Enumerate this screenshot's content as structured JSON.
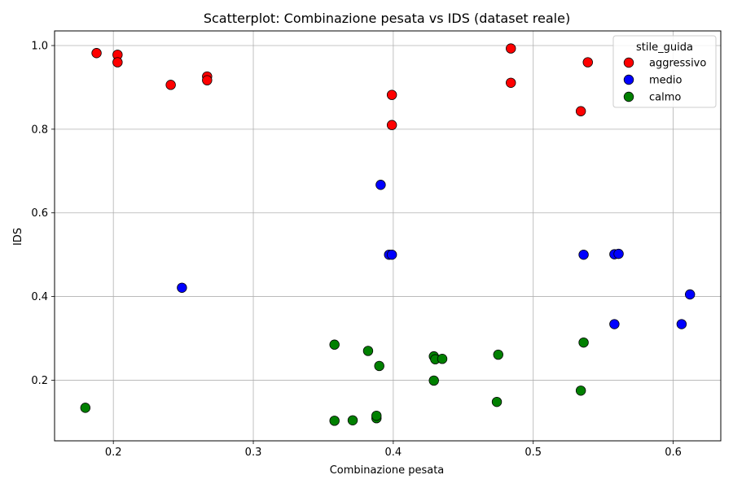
{
  "chart_data": {
    "type": "scatter",
    "title": "Scatterplot: Combinazione pesata vs IDS (dataset reale)",
    "xlabel": "Combinazione pesata",
    "ylabel": "IDS",
    "xlim": [
      0.158,
      0.634
    ],
    "ylim": [
      0.055,
      1.035
    ],
    "xticks": [
      0.2,
      0.3,
      0.4,
      0.5,
      0.6
    ],
    "xtick_labels": [
      "0.2",
      "0.3",
      "0.4",
      "0.5",
      "0.6"
    ],
    "yticks": [
      0.2,
      0.4,
      0.6,
      0.8,
      1.0
    ],
    "ytick_labels": [
      "0.2",
      "0.4",
      "0.6",
      "0.8",
      "1.0"
    ],
    "grid": true,
    "legend": {
      "title": "stile_guida",
      "placement": "top-right"
    },
    "series": [
      {
        "name": "aggressivo",
        "color": "#ff0000",
        "points": [
          [
            0.188,
            0.982
          ],
          [
            0.203,
            0.978
          ],
          [
            0.203,
            0.96
          ],
          [
            0.241,
            0.906
          ],
          [
            0.267,
            0.926
          ],
          [
            0.267,
            0.917
          ],
          [
            0.399,
            0.882
          ],
          [
            0.399,
            0.81
          ],
          [
            0.484,
            0.993
          ],
          [
            0.484,
            0.911
          ],
          [
            0.534,
            0.843
          ],
          [
            0.539,
            0.96
          ]
        ]
      },
      {
        "name": "medio",
        "color": "#0000ff",
        "points": [
          [
            0.249,
            0.421
          ],
          [
            0.391,
            0.667
          ],
          [
            0.397,
            0.5
          ],
          [
            0.399,
            0.5
          ],
          [
            0.536,
            0.5
          ],
          [
            0.558,
            0.501
          ],
          [
            0.561,
            0.502
          ],
          [
            0.558,
            0.334
          ],
          [
            0.606,
            0.334
          ],
          [
            0.612,
            0.405
          ]
        ]
      },
      {
        "name": "calmo",
        "color": "#008000",
        "points": [
          [
            0.18,
            0.134
          ],
          [
            0.358,
            0.285
          ],
          [
            0.358,
            0.103
          ],
          [
            0.371,
            0.104
          ],
          [
            0.382,
            0.27
          ],
          [
            0.388,
            0.109
          ],
          [
            0.388,
            0.115
          ],
          [
            0.39,
            0.234
          ],
          [
            0.429,
            0.199
          ],
          [
            0.429,
            0.257
          ],
          [
            0.43,
            0.25
          ],
          [
            0.435,
            0.251
          ],
          [
            0.474,
            0.148
          ],
          [
            0.475,
            0.261
          ],
          [
            0.534,
            0.175
          ],
          [
            0.536,
            0.29
          ]
        ]
      }
    ]
  }
}
